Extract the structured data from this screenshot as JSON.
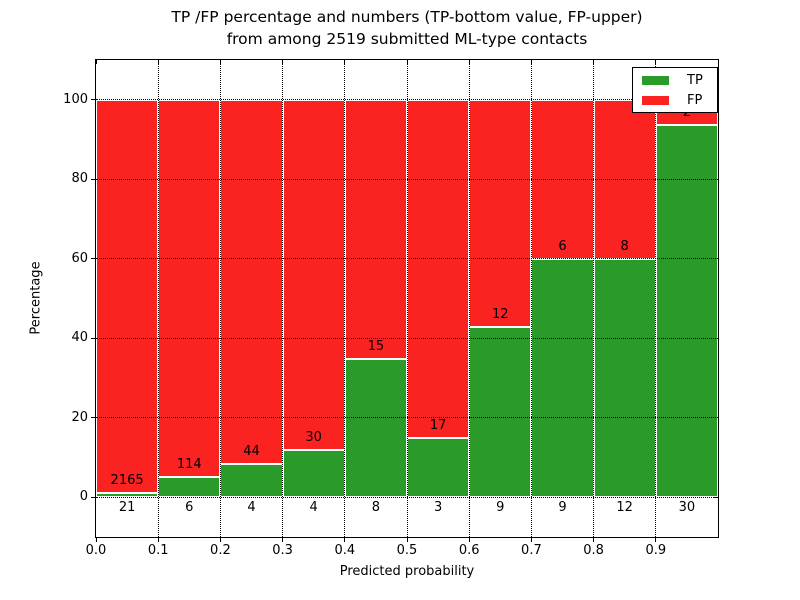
{
  "title": {
    "line1": "TP /FP percentage and numbers (TP-bottom value, FP-upper)",
    "line2": "from among 2519 submitted ML-type contacts"
  },
  "chart_data": {
    "type": "bar",
    "stacked": true,
    "units": "percent of bin total, normalized to 100",
    "xlabel": "Predicted probability",
    "ylabel": "Percentage",
    "xlim": [
      0,
      1.0
    ],
    "ylim": [
      -10,
      110
    ],
    "grid": true,
    "total_contacts": 2519,
    "xtick_labels": [
      "0.0",
      "0.1",
      "0.2",
      "0.3",
      "0.4",
      "0.5",
      "0.6",
      "0.7",
      "0.8",
      "0.9"
    ],
    "xtick_values": [
      0,
      0.1,
      0.2,
      0.3,
      0.4,
      0.5,
      0.6,
      0.7,
      0.8,
      0.9
    ],
    "ytick_values": [
      0,
      20,
      40,
      60,
      80,
      100
    ],
    "series": [
      {
        "name": "TP",
        "color": "#2a9a2a"
      },
      {
        "name": "FP",
        "color": "#fb2222"
      }
    ],
    "bins": [
      {
        "range": "0.0-0.1",
        "tp": 21,
        "fp": 2165,
        "tp_percent": 0.96
      },
      {
        "range": "0.1-0.2",
        "tp": 6,
        "fp": 114,
        "tp_percent": 5.0
      },
      {
        "range": "0.2-0.3",
        "tp": 4,
        "fp": 44,
        "tp_percent": 8.33
      },
      {
        "range": "0.3-0.4",
        "tp": 4,
        "fp": 30,
        "tp_percent": 11.76
      },
      {
        "range": "0.4-0.5",
        "tp": 8,
        "fp": 15,
        "tp_percent": 34.78
      },
      {
        "range": "0.5-0.6",
        "tp": 3,
        "fp": 17,
        "tp_percent": 15.0
      },
      {
        "range": "0.6-0.7",
        "tp": 9,
        "fp": 12,
        "tp_percent": 42.86
      },
      {
        "range": "0.7-0.8",
        "tp": 9,
        "fp": 6,
        "tp_percent": 60.0
      },
      {
        "range": "0.8-0.9",
        "tp": 12,
        "fp": 8,
        "tp_percent": 60.0
      },
      {
        "range": "0.9-1.0",
        "tp": 30,
        "fp": 2,
        "tp_percent": 93.75
      }
    ],
    "legend": {
      "position": "upper right",
      "items": [
        "TP",
        "FP"
      ]
    }
  }
}
